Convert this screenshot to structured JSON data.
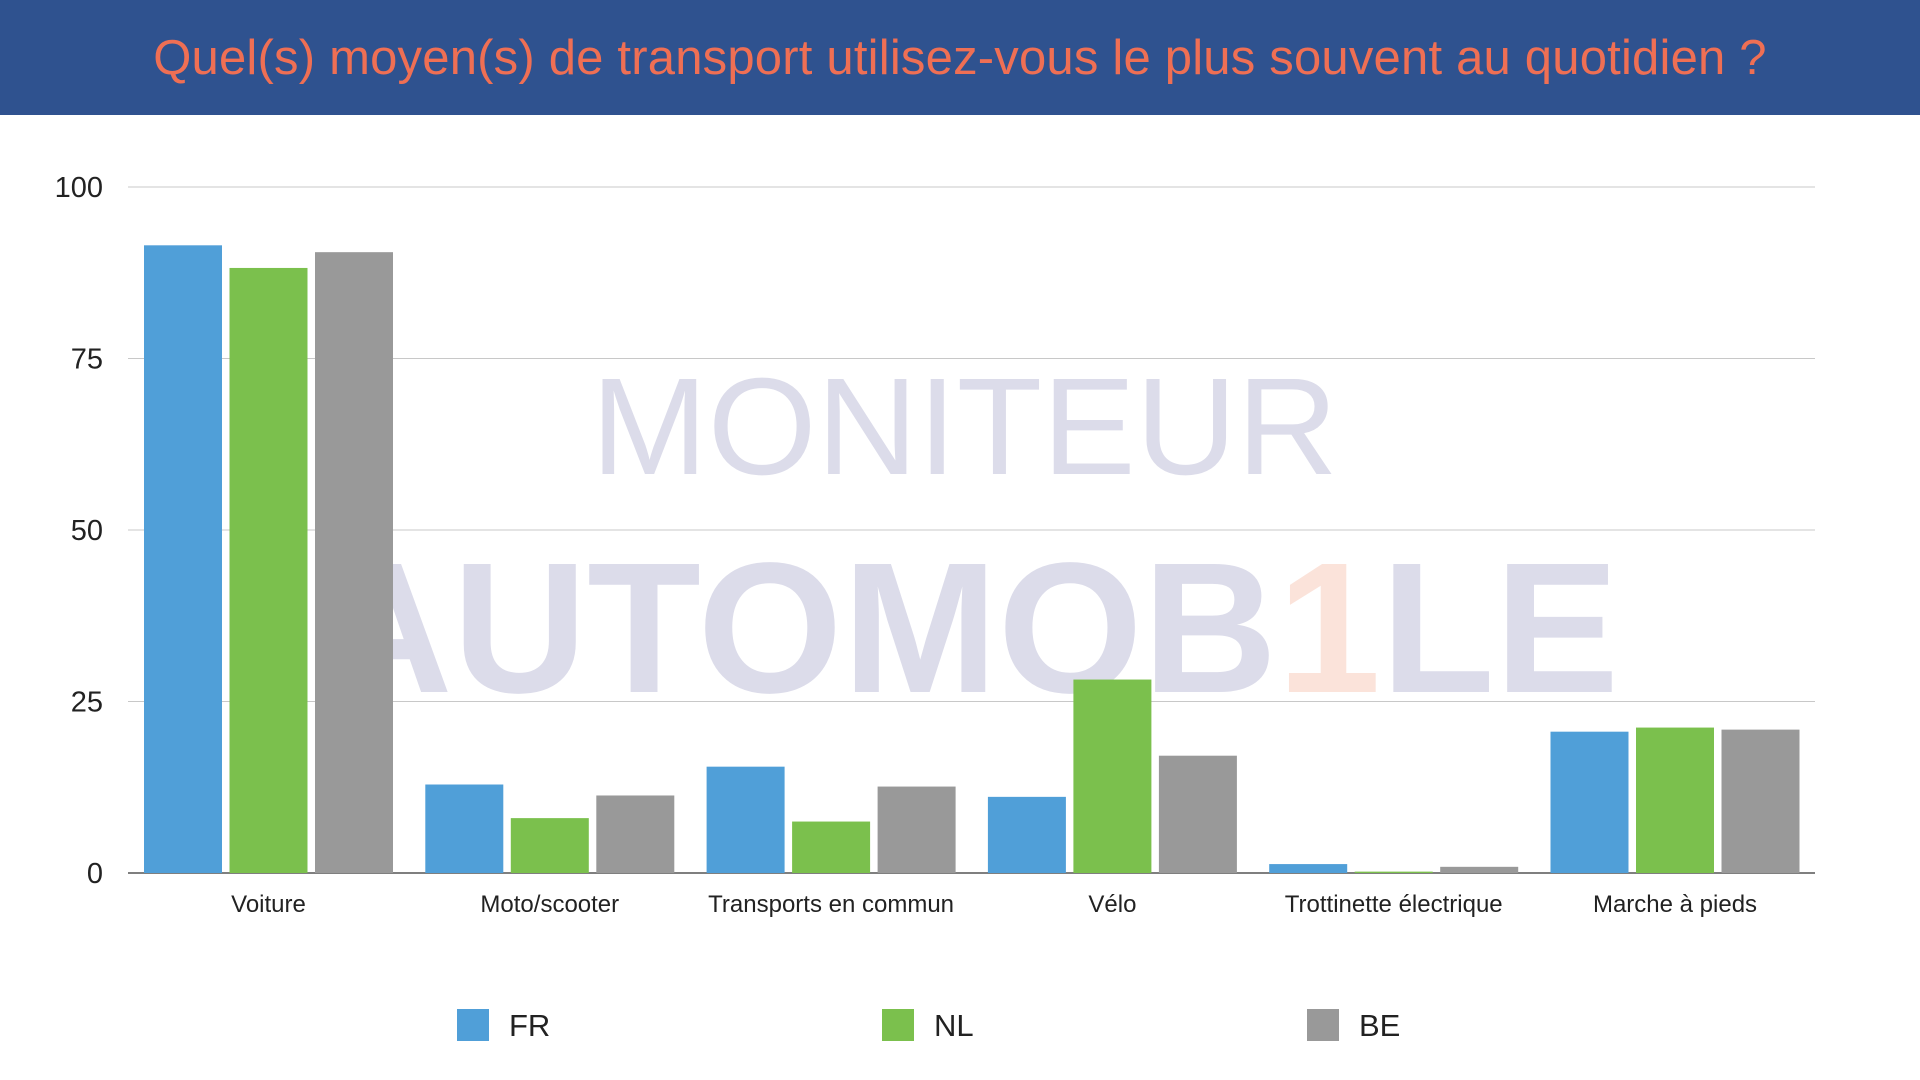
{
  "chart_data": {
    "type": "bar",
    "title": "Quel(s) moyen(s) de transport utilisez-vous le plus souvent au quotidien ?",
    "xlabel": "",
    "ylabel": "",
    "ylim": [
      0,
      100
    ],
    "yticks": [
      "0",
      "25",
      "50",
      "75",
      "100"
    ],
    "ytick_values": [
      0,
      25,
      50,
      75,
      100
    ],
    "grid": true,
    "legend_position": "bottom",
    "categories": [
      "Voiture",
      "Moto/scooter",
      "Transports en commun",
      "Vélo",
      "Trottinette électrique",
      "Marche à pieds"
    ],
    "series": [
      {
        "name": "FR",
        "color": "#509fd8",
        "values": [
          91.5,
          12.9,
          15.5,
          11.1,
          1.3,
          20.6
        ]
      },
      {
        "name": "NL",
        "color": "#7bc04d",
        "values": [
          88.2,
          8.0,
          7.5,
          28.2,
          0.2,
          21.2
        ]
      },
      {
        "name": "BE",
        "color": "#999999",
        "values": [
          90.5,
          11.3,
          12.6,
          17.1,
          0.9,
          20.9
        ]
      }
    ]
  },
  "watermark": {
    "line1": "MONITEUR",
    "line2": "AUTOMOB1LE"
  },
  "colors": {
    "header_bg": "#2f528f",
    "title": "#ef6f54",
    "grid": "#c8c8c8"
  }
}
